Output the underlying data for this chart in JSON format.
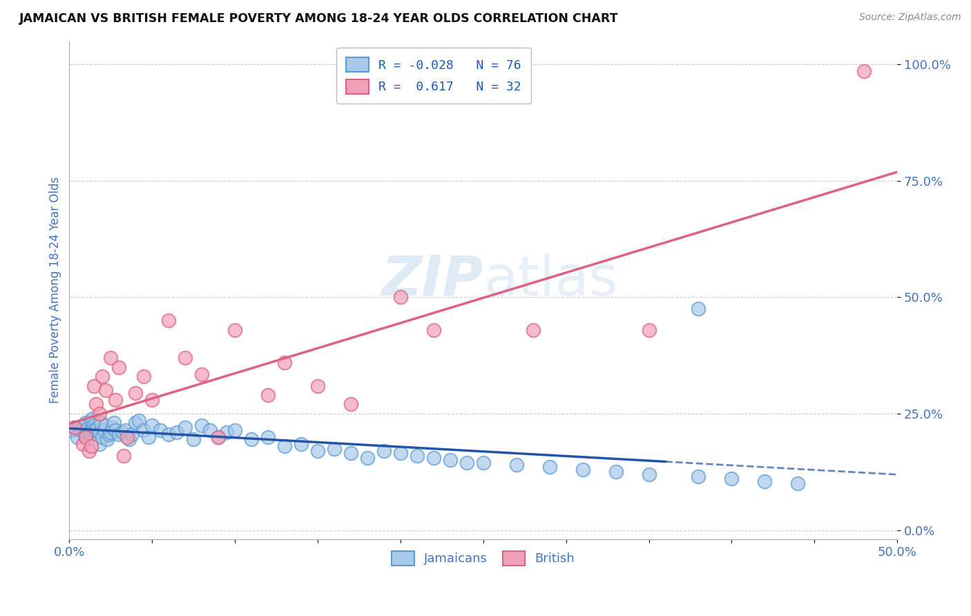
{
  "title": "JAMAICAN VS BRITISH FEMALE POVERTY AMONG 18-24 YEAR OLDS CORRELATION CHART",
  "source": "Source: ZipAtlas.com",
  "ylabel": "Female Poverty Among 18-24 Year Olds",
  "xlim": [
    0.0,
    0.5
  ],
  "ylim": [
    -0.02,
    1.05
  ],
  "yticks_right": [
    0.0,
    0.25,
    0.5,
    0.75,
    1.0
  ],
  "yticklabels_right": [
    "0.0%",
    "25.0%",
    "50.0%",
    "75.0%",
    "100.0%"
  ],
  "jamaicans_color": "#a8c8e8",
  "british_color": "#f0a0b8",
  "jamaicans_edge_color": "#5b9bd5",
  "british_edge_color": "#e06080",
  "jamaicans_line_color": "#2255aa",
  "british_line_color": "#e06080",
  "jamaicans_R": -0.028,
  "jamaicans_N": 76,
  "british_R": 0.617,
  "british_N": 32,
  "watermark": "ZIPatlas",
  "background_color": "#ffffff",
  "grid_color": "#cccccc",
  "title_color": "#111111",
  "axis_label_color": "#4472c4",
  "legend_text_color": "#1a5db5",
  "jamaicans_x": [
    0.002,
    0.003,
    0.004,
    0.005,
    0.006,
    0.007,
    0.008,
    0.009,
    0.01,
    0.01,
    0.011,
    0.012,
    0.013,
    0.013,
    0.014,
    0.015,
    0.015,
    0.016,
    0.017,
    0.018,
    0.018,
    0.019,
    0.02,
    0.021,
    0.022,
    0.023,
    0.024,
    0.025,
    0.026,
    0.027,
    0.028,
    0.03,
    0.032,
    0.034,
    0.036,
    0.038,
    0.04,
    0.042,
    0.045,
    0.048,
    0.05,
    0.055,
    0.06,
    0.065,
    0.07,
    0.075,
    0.08,
    0.085,
    0.09,
    0.095,
    0.1,
    0.11,
    0.12,
    0.13,
    0.14,
    0.15,
    0.16,
    0.17,
    0.18,
    0.19,
    0.2,
    0.21,
    0.22,
    0.23,
    0.24,
    0.25,
    0.27,
    0.29,
    0.31,
    0.33,
    0.35,
    0.38,
    0.4,
    0.42,
    0.44,
    0.38
  ],
  "jamaicans_y": [
    0.215,
    0.22,
    0.218,
    0.2,
    0.222,
    0.215,
    0.218,
    0.225,
    0.23,
    0.21,
    0.218,
    0.21,
    0.235,
    0.215,
    0.24,
    0.225,
    0.215,
    0.215,
    0.22,
    0.21,
    0.185,
    0.23,
    0.2,
    0.215,
    0.225,
    0.195,
    0.205,
    0.21,
    0.22,
    0.23,
    0.215,
    0.205,
    0.21,
    0.215,
    0.195,
    0.205,
    0.23,
    0.235,
    0.215,
    0.2,
    0.225,
    0.215,
    0.205,
    0.21,
    0.22,
    0.195,
    0.225,
    0.215,
    0.2,
    0.21,
    0.215,
    0.195,
    0.2,
    0.18,
    0.185,
    0.17,
    0.175,
    0.165,
    0.155,
    0.17,
    0.165,
    0.16,
    0.155,
    0.15,
    0.145,
    0.145,
    0.14,
    0.135,
    0.13,
    0.125,
    0.12,
    0.115,
    0.11,
    0.105,
    0.1,
    0.475
  ],
  "british_x": [
    0.003,
    0.008,
    0.01,
    0.012,
    0.013,
    0.015,
    0.016,
    0.018,
    0.02,
    0.022,
    0.025,
    0.028,
    0.03,
    0.033,
    0.035,
    0.04,
    0.045,
    0.05,
    0.06,
    0.07,
    0.08,
    0.09,
    0.1,
    0.12,
    0.13,
    0.15,
    0.17,
    0.2,
    0.22,
    0.28,
    0.35,
    0.48
  ],
  "british_y": [
    0.22,
    0.185,
    0.2,
    0.17,
    0.18,
    0.31,
    0.27,
    0.25,
    0.33,
    0.3,
    0.37,
    0.28,
    0.35,
    0.16,
    0.2,
    0.295,
    0.33,
    0.28,
    0.45,
    0.37,
    0.335,
    0.2,
    0.43,
    0.29,
    0.36,
    0.31,
    0.27,
    0.5,
    0.43,
    0.43,
    0.43,
    0.985
  ]
}
